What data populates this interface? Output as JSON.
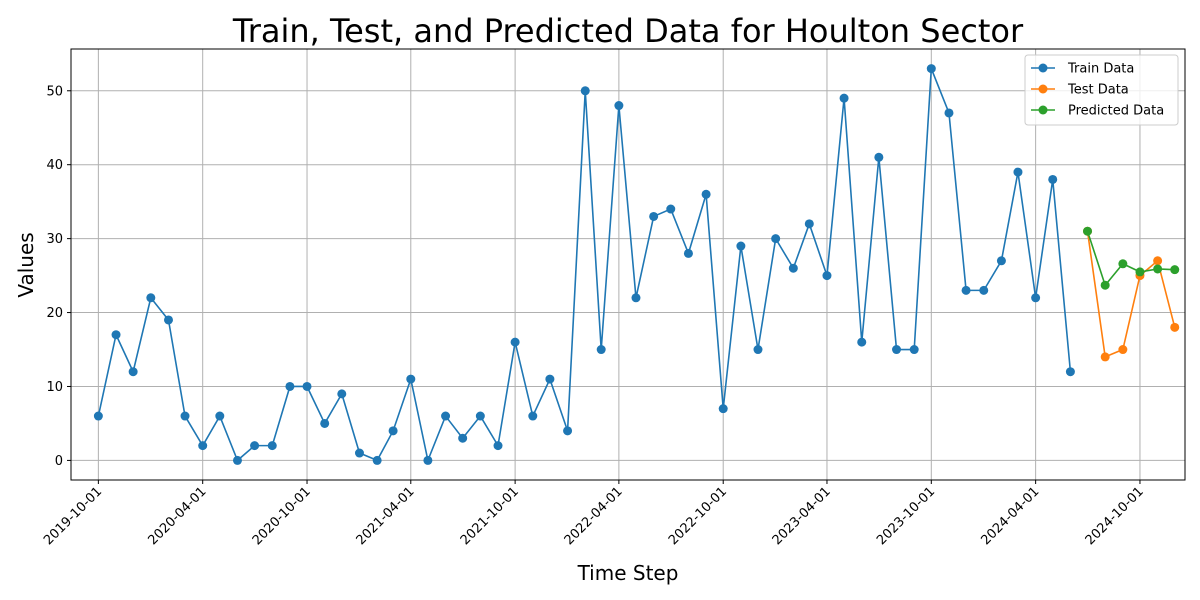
{
  "chart_data": {
    "type": "line",
    "title": "Train, Test, and Predicted Data for Houlton Sector",
    "xlabel": "Time Step",
    "ylabel": "Values",
    "x_ticks": [
      "2019-10-01",
      "2020-04-01",
      "2020-10-01",
      "2021-04-01",
      "2021-10-01",
      "2022-04-01",
      "2022-10-01",
      "2023-04-01",
      "2023-10-01",
      "2024-04-01",
      "2024-10-01"
    ],
    "y_ticks": [
      0,
      10,
      20,
      30,
      40,
      50
    ],
    "ylim": [
      -2.65,
      55.65
    ],
    "xlim": [
      "2019-08-14",
      "2024-12-19"
    ],
    "grid": true,
    "legend_position": "top-right",
    "series": [
      {
        "name": "Train Data",
        "color": "#1f77b4",
        "x": [
          "2019-10-01",
          "2019-11-01",
          "2019-12-01",
          "2020-01-01",
          "2020-02-01",
          "2020-03-01",
          "2020-04-01",
          "2020-05-01",
          "2020-06-01",
          "2020-07-01",
          "2020-08-01",
          "2020-09-01",
          "2020-10-01",
          "2020-11-01",
          "2020-12-01",
          "2021-01-01",
          "2021-02-01",
          "2021-03-01",
          "2021-04-01",
          "2021-05-01",
          "2021-06-01",
          "2021-07-01",
          "2021-08-01",
          "2021-09-01",
          "2021-10-01",
          "2021-11-01",
          "2021-12-01",
          "2022-01-01",
          "2022-02-01",
          "2022-03-01",
          "2022-04-01",
          "2022-05-01",
          "2022-06-01",
          "2022-07-01",
          "2022-08-01",
          "2022-09-01",
          "2022-10-01",
          "2022-11-01",
          "2022-12-01",
          "2023-01-01",
          "2023-02-01",
          "2023-03-01",
          "2023-04-01",
          "2023-05-01",
          "2023-06-01",
          "2023-07-01",
          "2023-08-01",
          "2023-09-01",
          "2023-10-01",
          "2023-11-01",
          "2023-12-01",
          "2024-01-01",
          "2024-02-01",
          "2024-03-01",
          "2024-04-01",
          "2024-05-01",
          "2024-06-01"
        ],
        "values": [
          6,
          17,
          12,
          22,
          19,
          6,
          2,
          6,
          0,
          2,
          2,
          10,
          10,
          5,
          9,
          1,
          0,
          4,
          11,
          0,
          6,
          3,
          6,
          2,
          16,
          6,
          11,
          4,
          50,
          15,
          48,
          22,
          33,
          34,
          28,
          36,
          7,
          29,
          15,
          30,
          26,
          32,
          25,
          49,
          16,
          41,
          15,
          15,
          53,
          47,
          23,
          23,
          27,
          39,
          22,
          38,
          12
        ]
      },
      {
        "name": "Test Data",
        "color": "#ff7f0e",
        "x": [
          "2024-07-01",
          "2024-08-01",
          "2024-09-01",
          "2024-10-01",
          "2024-11-01",
          "2024-12-01"
        ],
        "values": [
          31,
          14,
          15,
          25,
          27,
          18
        ]
      },
      {
        "name": "Predicted Data",
        "color": "#2ca02c",
        "x": [
          "2024-07-01",
          "2024-08-01",
          "2024-09-01",
          "2024-10-01",
          "2024-11-01",
          "2024-12-01"
        ],
        "values": [
          31,
          23.7,
          26.6,
          25.5,
          25.9,
          25.8
        ]
      }
    ]
  }
}
